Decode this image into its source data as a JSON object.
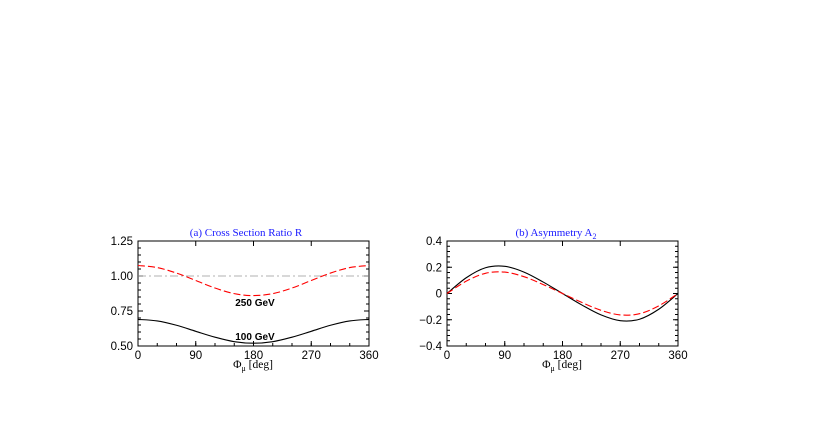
{
  "chart_data": [
    {
      "type": "line",
      "title": "(a) Cross Section Ratio R",
      "xlabel": "Φ_μ [deg]",
      "xlabel_main": "Φ",
      "xlabel_sub": "μ",
      "xlabel_unit": "[deg]",
      "ylabel": "",
      "xlim": [
        0,
        360
      ],
      "ylim": [
        0.5,
        1.25
      ],
      "xticks": [
        "0",
        "90",
        "180",
        "270",
        "360"
      ],
      "yticks": [
        "0.50",
        "0.75",
        "1.00",
        "1.25"
      ],
      "x": [
        0,
        30,
        60,
        90,
        120,
        150,
        180,
        210,
        240,
        270,
        300,
        330,
        360
      ],
      "series": [
        {
          "label": "250 GeV",
          "style": "dashed",
          "color": "#ff0000",
          "values": [
            1.075,
            1.06,
            1.021,
            0.968,
            0.914,
            0.874,
            0.86,
            0.874,
            0.914,
            0.968,
            1.021,
            1.06,
            1.075
          ]
        },
        {
          "label": "100 GeV",
          "style": "solid",
          "color": "#000000",
          "values": [
            0.69,
            0.679,
            0.648,
            0.605,
            0.563,
            0.531,
            0.52,
            0.531,
            0.563,
            0.605,
            0.648,
            0.679,
            0.69
          ]
        }
      ],
      "reference_line": {
        "y": 1.0,
        "style": "dash-dot",
        "color": "#999999"
      },
      "annotations": [
        "250 GeV",
        "100 GeV"
      ]
    },
    {
      "type": "line",
      "title": "(b) Asymmetry A",
      "title_sub": "2",
      "xlabel": "Φ_μ [deg]",
      "xlabel_main": "Φ",
      "xlabel_sub": "μ",
      "xlabel_unit": "[deg]",
      "ylabel": "",
      "xlim": [
        0,
        360
      ],
      "ylim": [
        -0.4,
        0.4
      ],
      "xticks": [
        "0",
        "90",
        "180",
        "270",
        "360"
      ],
      "yticks": [
        "−0.4",
        "−0.2",
        "0",
        "0.2",
        "0.4"
      ],
      "x": [
        0,
        30,
        60,
        90,
        120,
        150,
        180,
        210,
        240,
        270,
        300,
        330,
        360
      ],
      "series": [
        {
          "style": "solid",
          "color": "#000000",
          "values": [
            0,
            0.12,
            0.196,
            0.207,
            0.163,
            0.087,
            0,
            -0.087,
            -0.163,
            -0.207,
            -0.196,
            -0.12,
            0
          ]
        },
        {
          "style": "dashed",
          "color": "#ff0000",
          "values": [
            0,
            0.094,
            0.154,
            0.163,
            0.128,
            0.068,
            0,
            -0.068,
            -0.128,
            -0.163,
            -0.154,
            -0.094,
            0
          ]
        }
      ]
    }
  ]
}
